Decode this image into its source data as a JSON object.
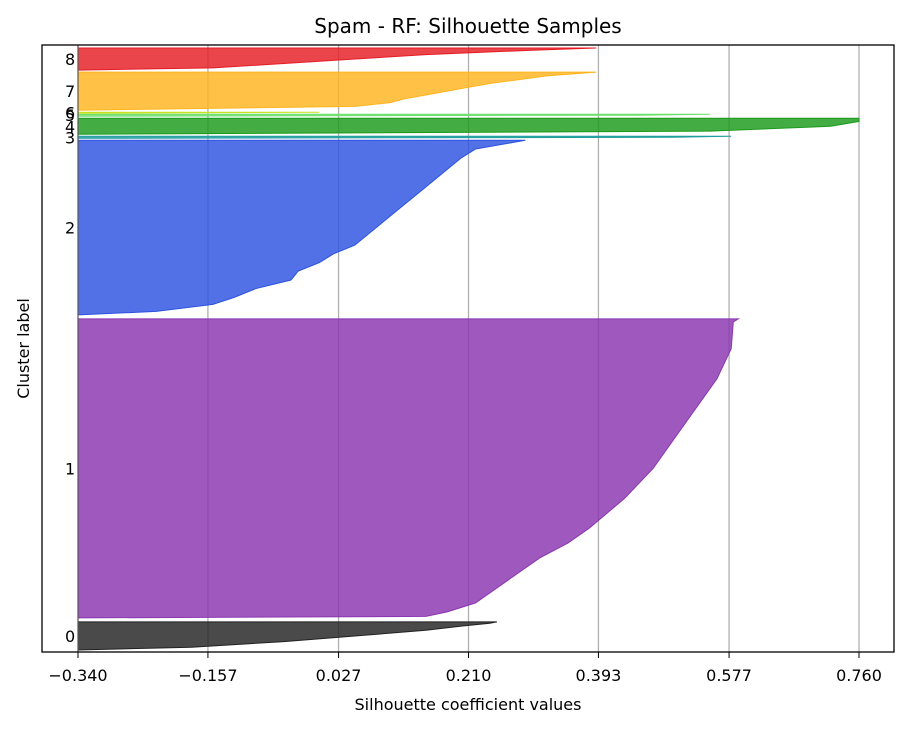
{
  "chart_data": {
    "type": "area",
    "title": "Spam - RF: Silhouette Samples",
    "xlabel": "Silhouette coefficient values",
    "ylabel": "Cluster label",
    "xlim": [
      -0.34,
      0.76
    ],
    "xticks": [
      -0.34,
      -0.157,
      0.027,
      0.21,
      0.393,
      0.577,
      0.76
    ],
    "xtick_labels": [
      "−0.340",
      "−0.157",
      "0.027",
      "0.210",
      "0.393",
      "0.577",
      "0.760"
    ],
    "grid": "vertical",
    "clusters": [
      {
        "label": "0",
        "color": "#222222",
        "y_range": [
          0,
          28
        ],
        "profile": [
          [
            0,
            -0.34
          ],
          [
            0.1,
            -0.18
          ],
          [
            0.3,
            -0.05
          ],
          [
            0.5,
            0.05
          ],
          [
            0.7,
            0.15
          ],
          [
            0.85,
            0.2
          ],
          [
            0.95,
            0.24
          ],
          [
            1,
            0.25
          ]
        ]
      },
      {
        "label": "1",
        "color": "#8a35b0",
        "y_range": [
          32,
          330
        ],
        "profile": [
          [
            0,
            -0.34
          ],
          [
            0.005,
            0.15
          ],
          [
            0.02,
            0.18
          ],
          [
            0.05,
            0.22
          ],
          [
            0.1,
            0.25
          ],
          [
            0.15,
            0.28
          ],
          [
            0.2,
            0.31
          ],
          [
            0.25,
            0.35
          ],
          [
            0.3,
            0.38
          ],
          [
            0.4,
            0.43
          ],
          [
            0.5,
            0.47
          ],
          [
            0.6,
            0.5
          ],
          [
            0.7,
            0.53
          ],
          [
            0.8,
            0.56
          ],
          [
            0.85,
            0.57
          ],
          [
            0.9,
            0.58
          ],
          [
            0.99,
            0.583
          ],
          [
            1,
            0.59
          ]
        ]
      },
      {
        "label": "2",
        "color": "#2c52e2",
        "y_range": [
          334,
          508
        ],
        "profile": [
          [
            0,
            -0.34
          ],
          [
            0.02,
            -0.23
          ],
          [
            0.06,
            -0.15
          ],
          [
            0.1,
            -0.12
          ],
          [
            0.15,
            -0.09
          ],
          [
            0.2,
            -0.04
          ],
          [
            0.25,
            -0.03
          ],
          [
            0.3,
            0.0
          ],
          [
            0.35,
            0.02
          ],
          [
            0.4,
            0.05
          ],
          [
            0.5,
            0.08
          ],
          [
            0.6,
            0.11
          ],
          [
            0.7,
            0.14
          ],
          [
            0.8,
            0.17
          ],
          [
            0.9,
            0.2
          ],
          [
            0.95,
            0.22
          ],
          [
            1,
            0.29
          ]
        ]
      },
      {
        "label": "3",
        "color": "#1f9e9e",
        "y_range": [
          510,
          512
        ],
        "profile": [
          [
            0,
            -0.34
          ],
          [
            0.5,
            0.5
          ],
          [
            1,
            0.58
          ]
        ]
      },
      {
        "label": "4",
        "color": "#1a9a1a",
        "y_range": [
          514,
          530
        ],
        "profile": [
          [
            0,
            -0.34
          ],
          [
            0.2,
            0.55
          ],
          [
            0.5,
            0.72
          ],
          [
            0.8,
            0.76
          ],
          [
            1,
            0.76
          ]
        ]
      },
      {
        "label": "5",
        "color": "#6ce06c",
        "y_range": [
          532,
          534
        ],
        "profile": [
          [
            0,
            -0.34
          ],
          [
            0.5,
            0.45
          ],
          [
            1,
            0.55
          ]
        ]
      },
      {
        "label": "6",
        "color": "#c8e020",
        "y_range": [
          535,
          536
        ],
        "profile": [
          [
            0,
            -0.34
          ],
          [
            1,
            0.0
          ]
        ]
      },
      {
        "label": "7",
        "color": "#ffb41f",
        "y_range": [
          538,
          576
        ],
        "profile": [
          [
            0,
            -0.34
          ],
          [
            0.1,
            0.05
          ],
          [
            0.2,
            0.1
          ],
          [
            0.3,
            0.12
          ],
          [
            0.4,
            0.15
          ],
          [
            0.5,
            0.18
          ],
          [
            0.6,
            0.21
          ],
          [
            0.7,
            0.24
          ],
          [
            0.8,
            0.28
          ],
          [
            0.9,
            0.32
          ],
          [
            1,
            0.39
          ]
        ]
      },
      {
        "label": "8",
        "color": "#e51c23",
        "y_range": [
          578,
          600
        ],
        "profile": [
          [
            0,
            -0.34
          ],
          [
            0.1,
            -0.15
          ],
          [
            0.3,
            -0.05
          ],
          [
            0.5,
            0.05
          ],
          [
            0.7,
            0.15
          ],
          [
            0.9,
            0.3
          ],
          [
            1,
            0.39
          ]
        ]
      }
    ],
    "ylim": [
      0,
      600
    ]
  }
}
